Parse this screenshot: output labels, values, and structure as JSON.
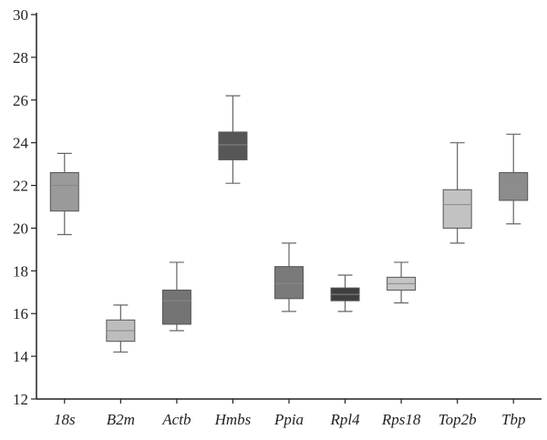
{
  "chart_data": {
    "type": "box",
    "title": "",
    "xlabel": "",
    "ylabel": "",
    "ylim": [
      12,
      30
    ],
    "yticks": [
      "12",
      "14",
      "16",
      "18",
      "20",
      "22",
      "24",
      "26",
      "28",
      "30"
    ],
    "grid": false,
    "legend": "none",
    "categories": [
      "18s",
      "B2m",
      "Actb",
      "Hmbs",
      "Ppia",
      "Rpl4",
      "Rps18",
      "Top2b",
      "Tbp"
    ],
    "boxes": [
      {
        "category": "18s",
        "min": 19.7,
        "q1": 20.8,
        "median": 22.0,
        "q3": 22.6,
        "max": 23.5,
        "color": "#9a9a9a"
      },
      {
        "category": "B2m",
        "min": 14.2,
        "q1": 14.7,
        "median": 15.2,
        "q3": 15.7,
        "max": 16.4,
        "color": "#bdbdbd"
      },
      {
        "category": "Actb",
        "min": 15.2,
        "q1": 15.5,
        "median": 16.6,
        "q3": 17.1,
        "max": 18.4,
        "color": "#747474"
      },
      {
        "category": "Hmbs",
        "min": 22.1,
        "q1": 23.2,
        "median": 23.9,
        "q3": 24.5,
        "max": 26.2,
        "color": "#565656"
      },
      {
        "category": "Ppia",
        "min": 16.1,
        "q1": 16.7,
        "median": 17.4,
        "q3": 18.2,
        "max": 19.3,
        "color": "#7a7a7a"
      },
      {
        "category": "Rpl4",
        "min": 16.1,
        "q1": 16.6,
        "median": 16.9,
        "q3": 17.2,
        "max": 17.8,
        "color": "#3f3f3f"
      },
      {
        "category": "Rps18",
        "min": 16.5,
        "q1": 17.1,
        "median": 17.4,
        "q3": 17.7,
        "max": 18.4,
        "color": "#c5c5c5"
      },
      {
        "category": "Top2b",
        "min": 19.3,
        "q1": 20.0,
        "median": 21.1,
        "q3": 21.8,
        "max": 24.0,
        "color": "#c2c2c2"
      },
      {
        "category": "Tbp",
        "min": 20.2,
        "q1": 21.3,
        "median": 22.2,
        "q3": 22.6,
        "max": 24.4,
        "color": "#8c8c8c"
      }
    ]
  }
}
